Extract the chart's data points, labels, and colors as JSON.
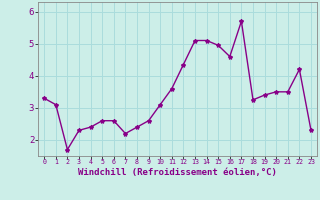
{
  "x": [
    0,
    1,
    2,
    3,
    4,
    5,
    6,
    7,
    8,
    9,
    10,
    11,
    12,
    13,
    14,
    15,
    16,
    17,
    18,
    19,
    20,
    21,
    22,
    23
  ],
  "y": [
    3.3,
    3.1,
    1.7,
    2.3,
    2.4,
    2.6,
    2.6,
    2.2,
    2.4,
    2.6,
    3.1,
    3.6,
    4.35,
    5.1,
    5.1,
    4.95,
    4.6,
    5.7,
    3.25,
    3.4,
    3.5,
    3.5,
    4.2,
    2.3
  ],
  "line_color": "#880088",
  "marker": "*",
  "marker_size": 3,
  "xlabel": "Windchill (Refroidissement éolien,°C)",
  "xlabel_fontsize": 6.5,
  "ylim": [
    1.5,
    6.3
  ],
  "xlim": [
    -0.5,
    23.5
  ],
  "yticks": [
    2,
    3,
    4,
    5,
    6
  ],
  "xticks": [
    0,
    1,
    2,
    3,
    4,
    5,
    6,
    7,
    8,
    9,
    10,
    11,
    12,
    13,
    14,
    15,
    16,
    17,
    18,
    19,
    20,
    21,
    22,
    23
  ],
  "xtick_fontsize": 4.8,
  "ytick_fontsize": 6.5,
  "grid_color": "#aadcdc",
  "bg_color": "#cceee8",
  "line_width": 1.0,
  "spine_color": "#888888"
}
